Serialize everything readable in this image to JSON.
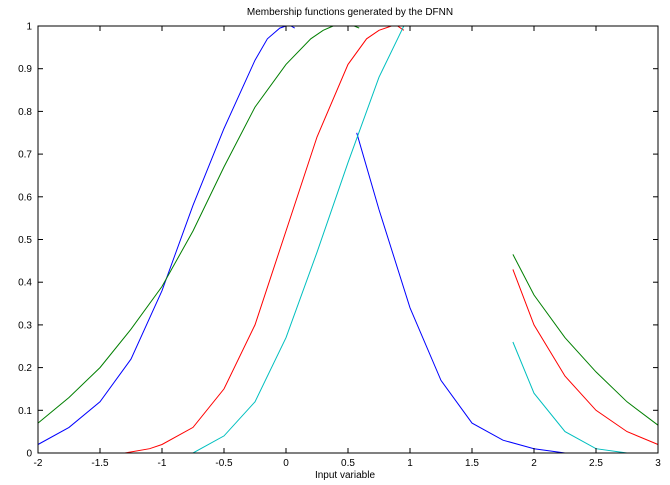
{
  "chart_data": {
    "type": "line",
    "title": "Membership functions generated by the DFNN",
    "xlabel": "Input variable",
    "ylabel": "",
    "xlim": [
      -2,
      3
    ],
    "ylim": [
      0,
      1
    ],
    "x_ticks": [
      "-2",
      "-1.5",
      "-1",
      "-0.5",
      "0",
      "0.5",
      "1",
      "1.5",
      "2",
      "2.5",
      "3"
    ],
    "y_ticks": [
      "0",
      "0.1",
      "0.2",
      "0.3",
      "0.4",
      "0.5",
      "0.6",
      "0.7",
      "0.8",
      "0.9",
      "1"
    ],
    "grid": false,
    "series": [
      {
        "color": "#0000ff",
        "segments": [
          [
            [
              -2,
              0.02
            ],
            [
              -1.75,
              0.06
            ],
            [
              -1.5,
              0.12
            ],
            [
              -1.25,
              0.22
            ],
            [
              -1,
              0.38
            ],
            [
              -0.75,
              0.58
            ],
            [
              -0.5,
              0.76
            ],
            [
              -0.25,
              0.92
            ],
            [
              -0.15,
              0.97
            ],
            [
              -0.05,
              0.995
            ],
            [
              0,
              1
            ]
          ],
          [
            [
              0.04,
              1
            ],
            [
              0.07,
              0.995
            ]
          ],
          [
            [
              0.57,
              0.75
            ],
            [
              0.75,
              0.57
            ],
            [
              1,
              0.34
            ],
            [
              1.25,
              0.17
            ],
            [
              1.5,
              0.07
            ],
            [
              1.75,
              0.03
            ],
            [
              2,
              0.01
            ],
            [
              2.25,
              0.0
            ]
          ]
        ]
      },
      {
        "color": "#007f00",
        "segments": [
          [
            [
              -2,
              0.07
            ],
            [
              -1.75,
              0.13
            ],
            [
              -1.5,
              0.2
            ],
            [
              -1.25,
              0.29
            ],
            [
              -1,
              0.39
            ],
            [
              -0.75,
              0.52
            ],
            [
              -0.5,
              0.67
            ],
            [
              -0.25,
              0.81
            ],
            [
              0,
              0.91
            ],
            [
              0.2,
              0.97
            ],
            [
              0.3,
              0.99
            ],
            [
              0.38,
              1
            ]
          ],
          [
            [
              0.55,
              1
            ],
            [
              0.59,
              0.995
            ]
          ],
          [
            [
              1.83,
              0.465
            ],
            [
              2,
              0.37
            ],
            [
              2.25,
              0.27
            ],
            [
              2.5,
              0.19
            ],
            [
              2.75,
              0.12
            ],
            [
              3,
              0.065
            ]
          ]
        ]
      },
      {
        "color": "#ff0000",
        "segments": [
          [
            [
              -1.3,
              0.0
            ],
            [
              -1.1,
              0.01
            ],
            [
              -1,
              0.02
            ],
            [
              -0.75,
              0.06
            ],
            [
              -0.5,
              0.15
            ],
            [
              -0.25,
              0.3
            ],
            [
              0,
              0.52
            ],
            [
              0.25,
              0.74
            ],
            [
              0.5,
              0.91
            ],
            [
              0.65,
              0.97
            ],
            [
              0.75,
              0.99
            ],
            [
              0.85,
              1
            ]
          ],
          [
            [
              0.9,
              1
            ],
            [
              0.95,
              0.99
            ]
          ],
          [
            [
              1.83,
              0.43
            ],
            [
              2,
              0.3
            ],
            [
              2.25,
              0.18
            ],
            [
              2.5,
              0.1
            ],
            [
              2.75,
              0.05
            ],
            [
              3,
              0.02
            ]
          ]
        ]
      },
      {
        "color": "#00bfbf",
        "segments": [
          [
            [
              -1.6,
              0.0
            ],
            [
              -0.75,
              0.0
            ],
            [
              -0.5,
              0.04
            ],
            [
              -0.25,
              0.12
            ],
            [
              0,
              0.27
            ],
            [
              0.25,
              0.47
            ],
            [
              0.5,
              0.68
            ],
            [
              0.75,
              0.88
            ],
            [
              0.9,
              0.97
            ],
            [
              0.95,
              1
            ]
          ],
          [
            [
              1.83,
              0.26
            ],
            [
              2,
              0.14
            ],
            [
              2.25,
              0.05
            ],
            [
              2.5,
              0.01
            ],
            [
              2.75,
              0.0
            ]
          ]
        ]
      }
    ]
  }
}
